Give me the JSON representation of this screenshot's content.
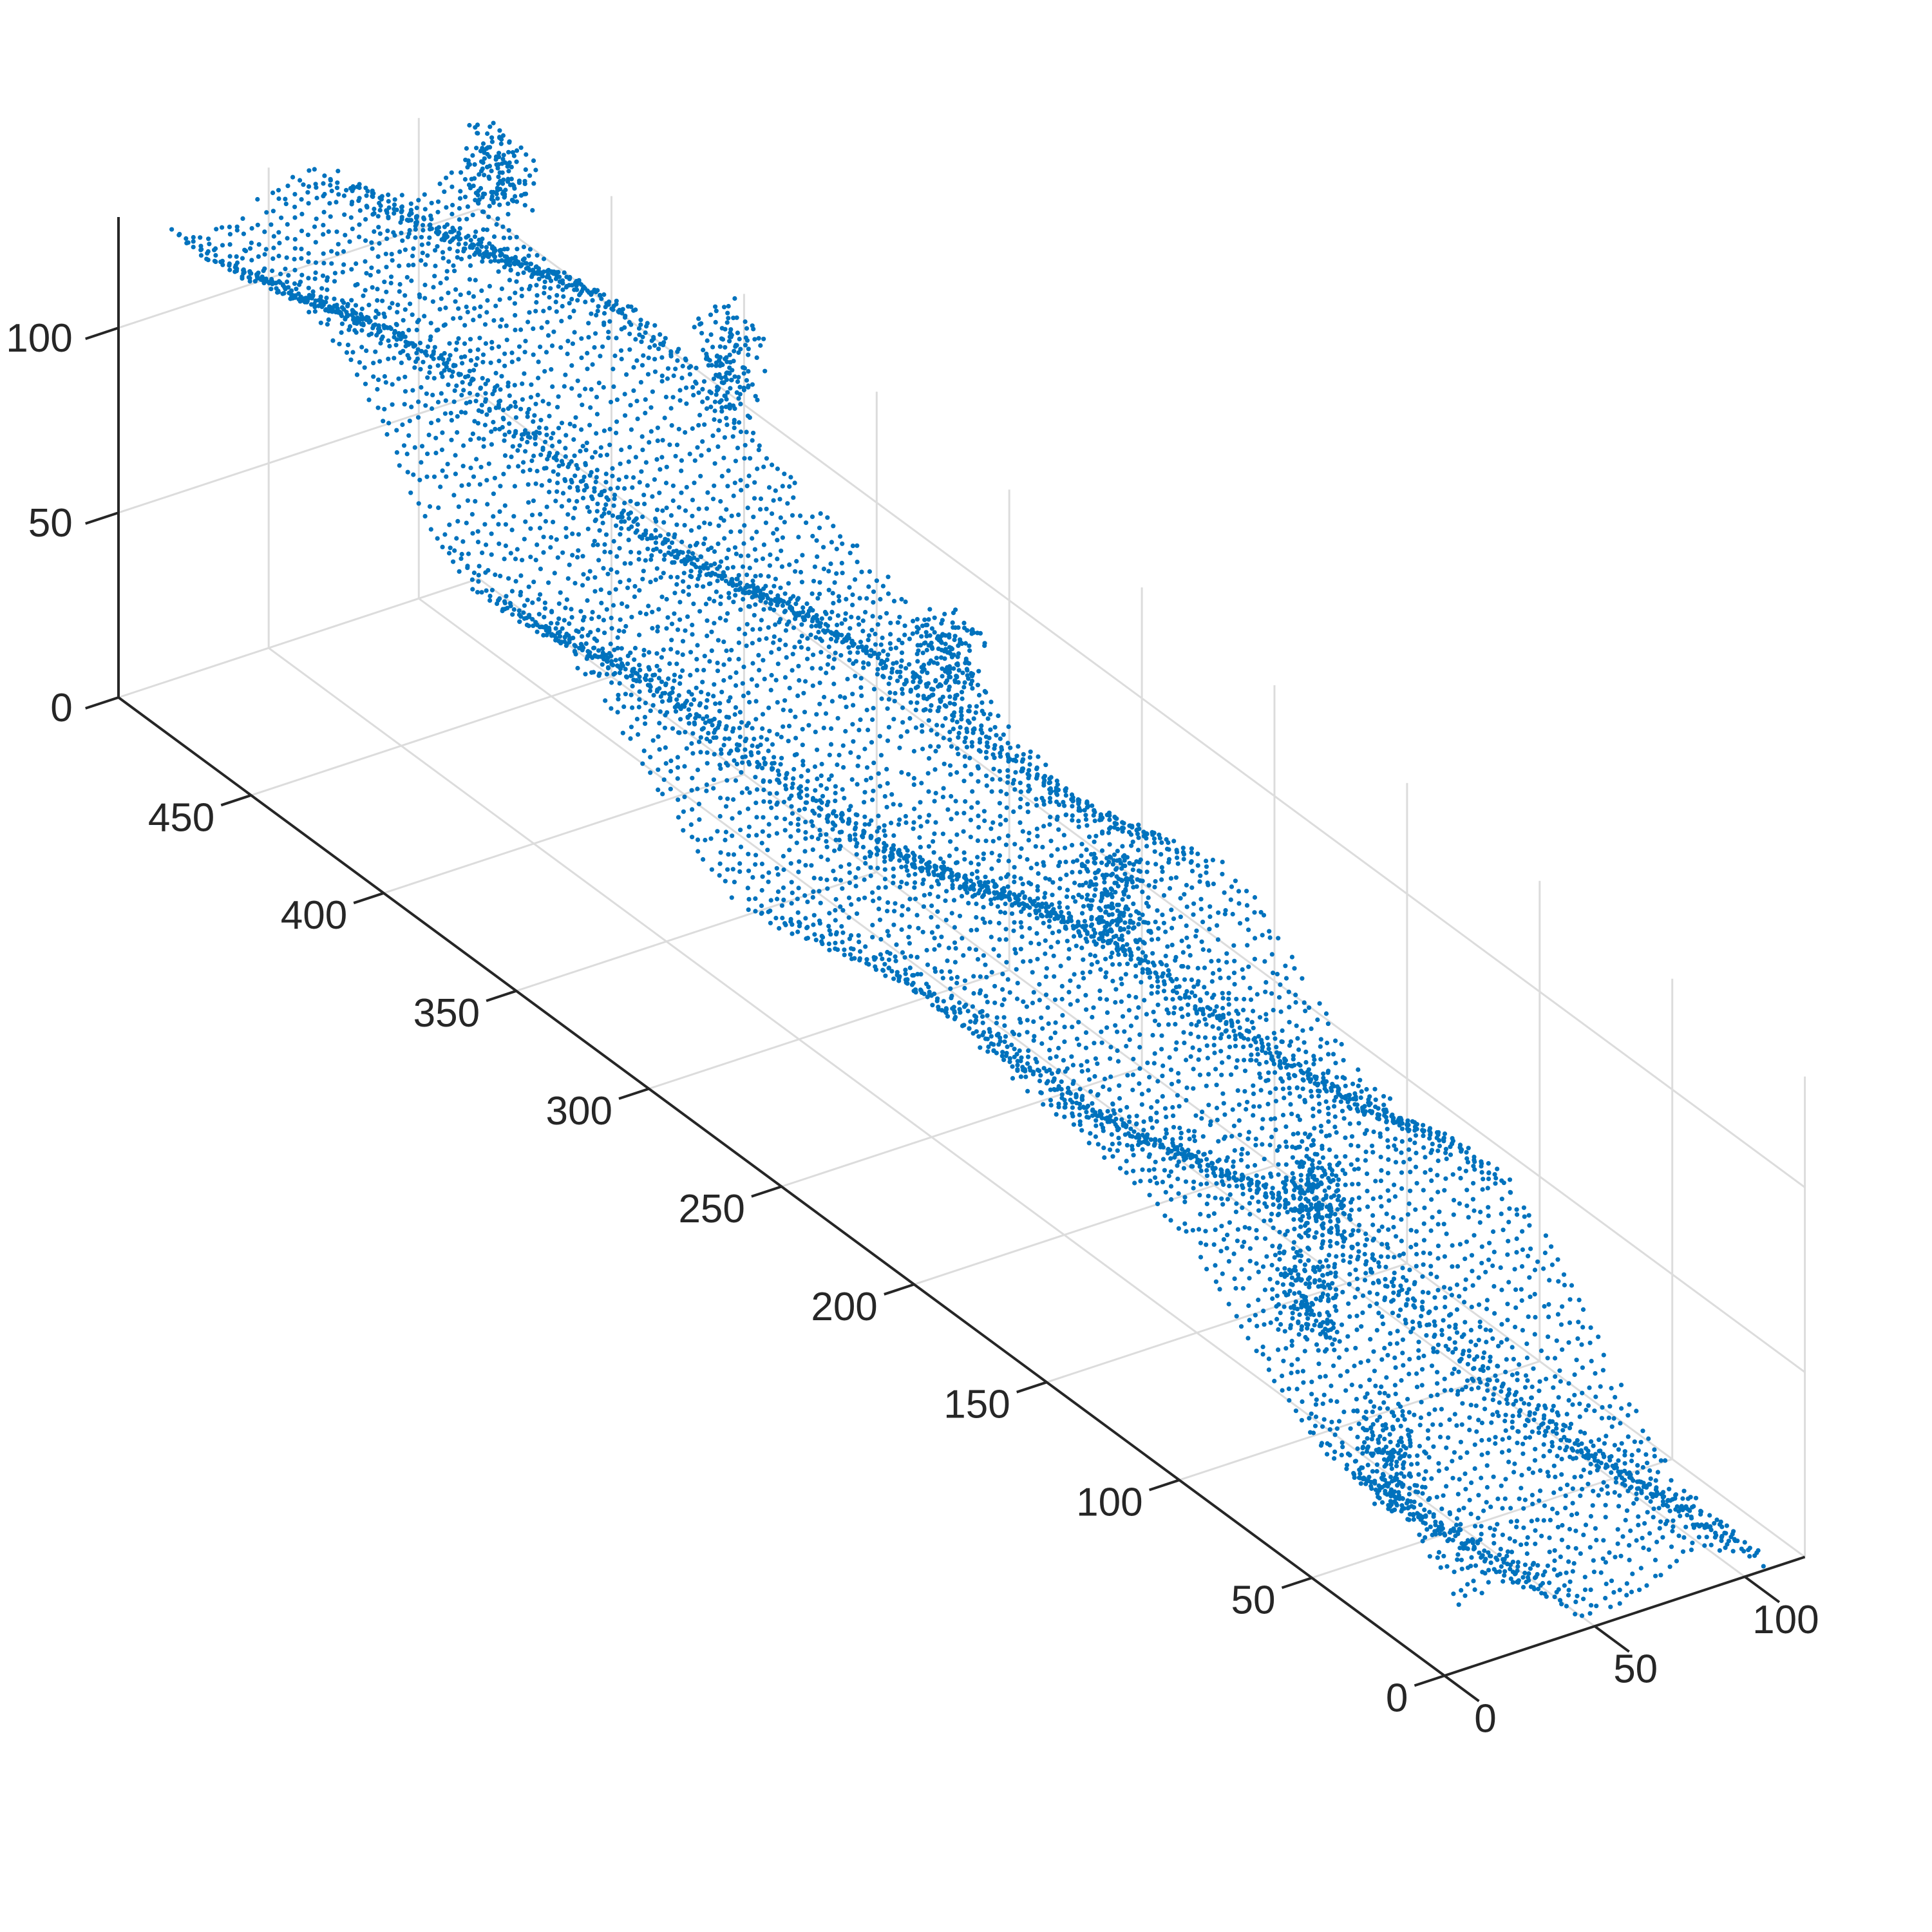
{
  "chart_data": {
    "type": "scatter",
    "projection": "3d",
    "marker_color": "#0072BD",
    "grid": true,
    "title": "",
    "xlabel": "",
    "ylabel": "",
    "zlabel": "",
    "xlim": [
      0,
      120
    ],
    "ylim": [
      0,
      500
    ],
    "zlim": [
      0,
      130
    ],
    "x_ticks": [
      "0",
      "50",
      "100"
    ],
    "y_ticks": [
      "0",
      "50",
      "100",
      "150",
      "200",
      "250",
      "300",
      "350",
      "400",
      "450"
    ],
    "z_ticks": [
      "0",
      "50",
      "100"
    ],
    "series": [
      {
        "description_of_shape": "dense ridge strip",
        "x_range": [
          5,
          115
        ],
        "y_range": [
          0,
          495
        ],
        "z_profile_points": [
          {
            "y": 0,
            "z": 5
          },
          {
            "y": 25,
            "z": 15
          },
          {
            "y": 50,
            "z": 25
          },
          {
            "y": 75,
            "z": 35
          },
          {
            "y": 100,
            "z": 45
          },
          {
            "y": 125,
            "z": 52
          },
          {
            "y": 150,
            "z": 58
          },
          {
            "y": 175,
            "z": 62
          },
          {
            "y": 200,
            "z": 65
          },
          {
            "y": 225,
            "z": 68
          },
          {
            "y": 250,
            "z": 72
          },
          {
            "y": 275,
            "z": 76
          },
          {
            "y": 300,
            "z": 80
          },
          {
            "y": 325,
            "z": 85
          },
          {
            "y": 350,
            "z": 92
          },
          {
            "y": 375,
            "z": 100
          },
          {
            "y": 400,
            "z": 108
          },
          {
            "y": 425,
            "z": 115
          },
          {
            "y": 450,
            "z": 120
          },
          {
            "y": 475,
            "z": 124
          },
          {
            "y": 495,
            "z": 126
          }
        ]
      }
    ]
  }
}
